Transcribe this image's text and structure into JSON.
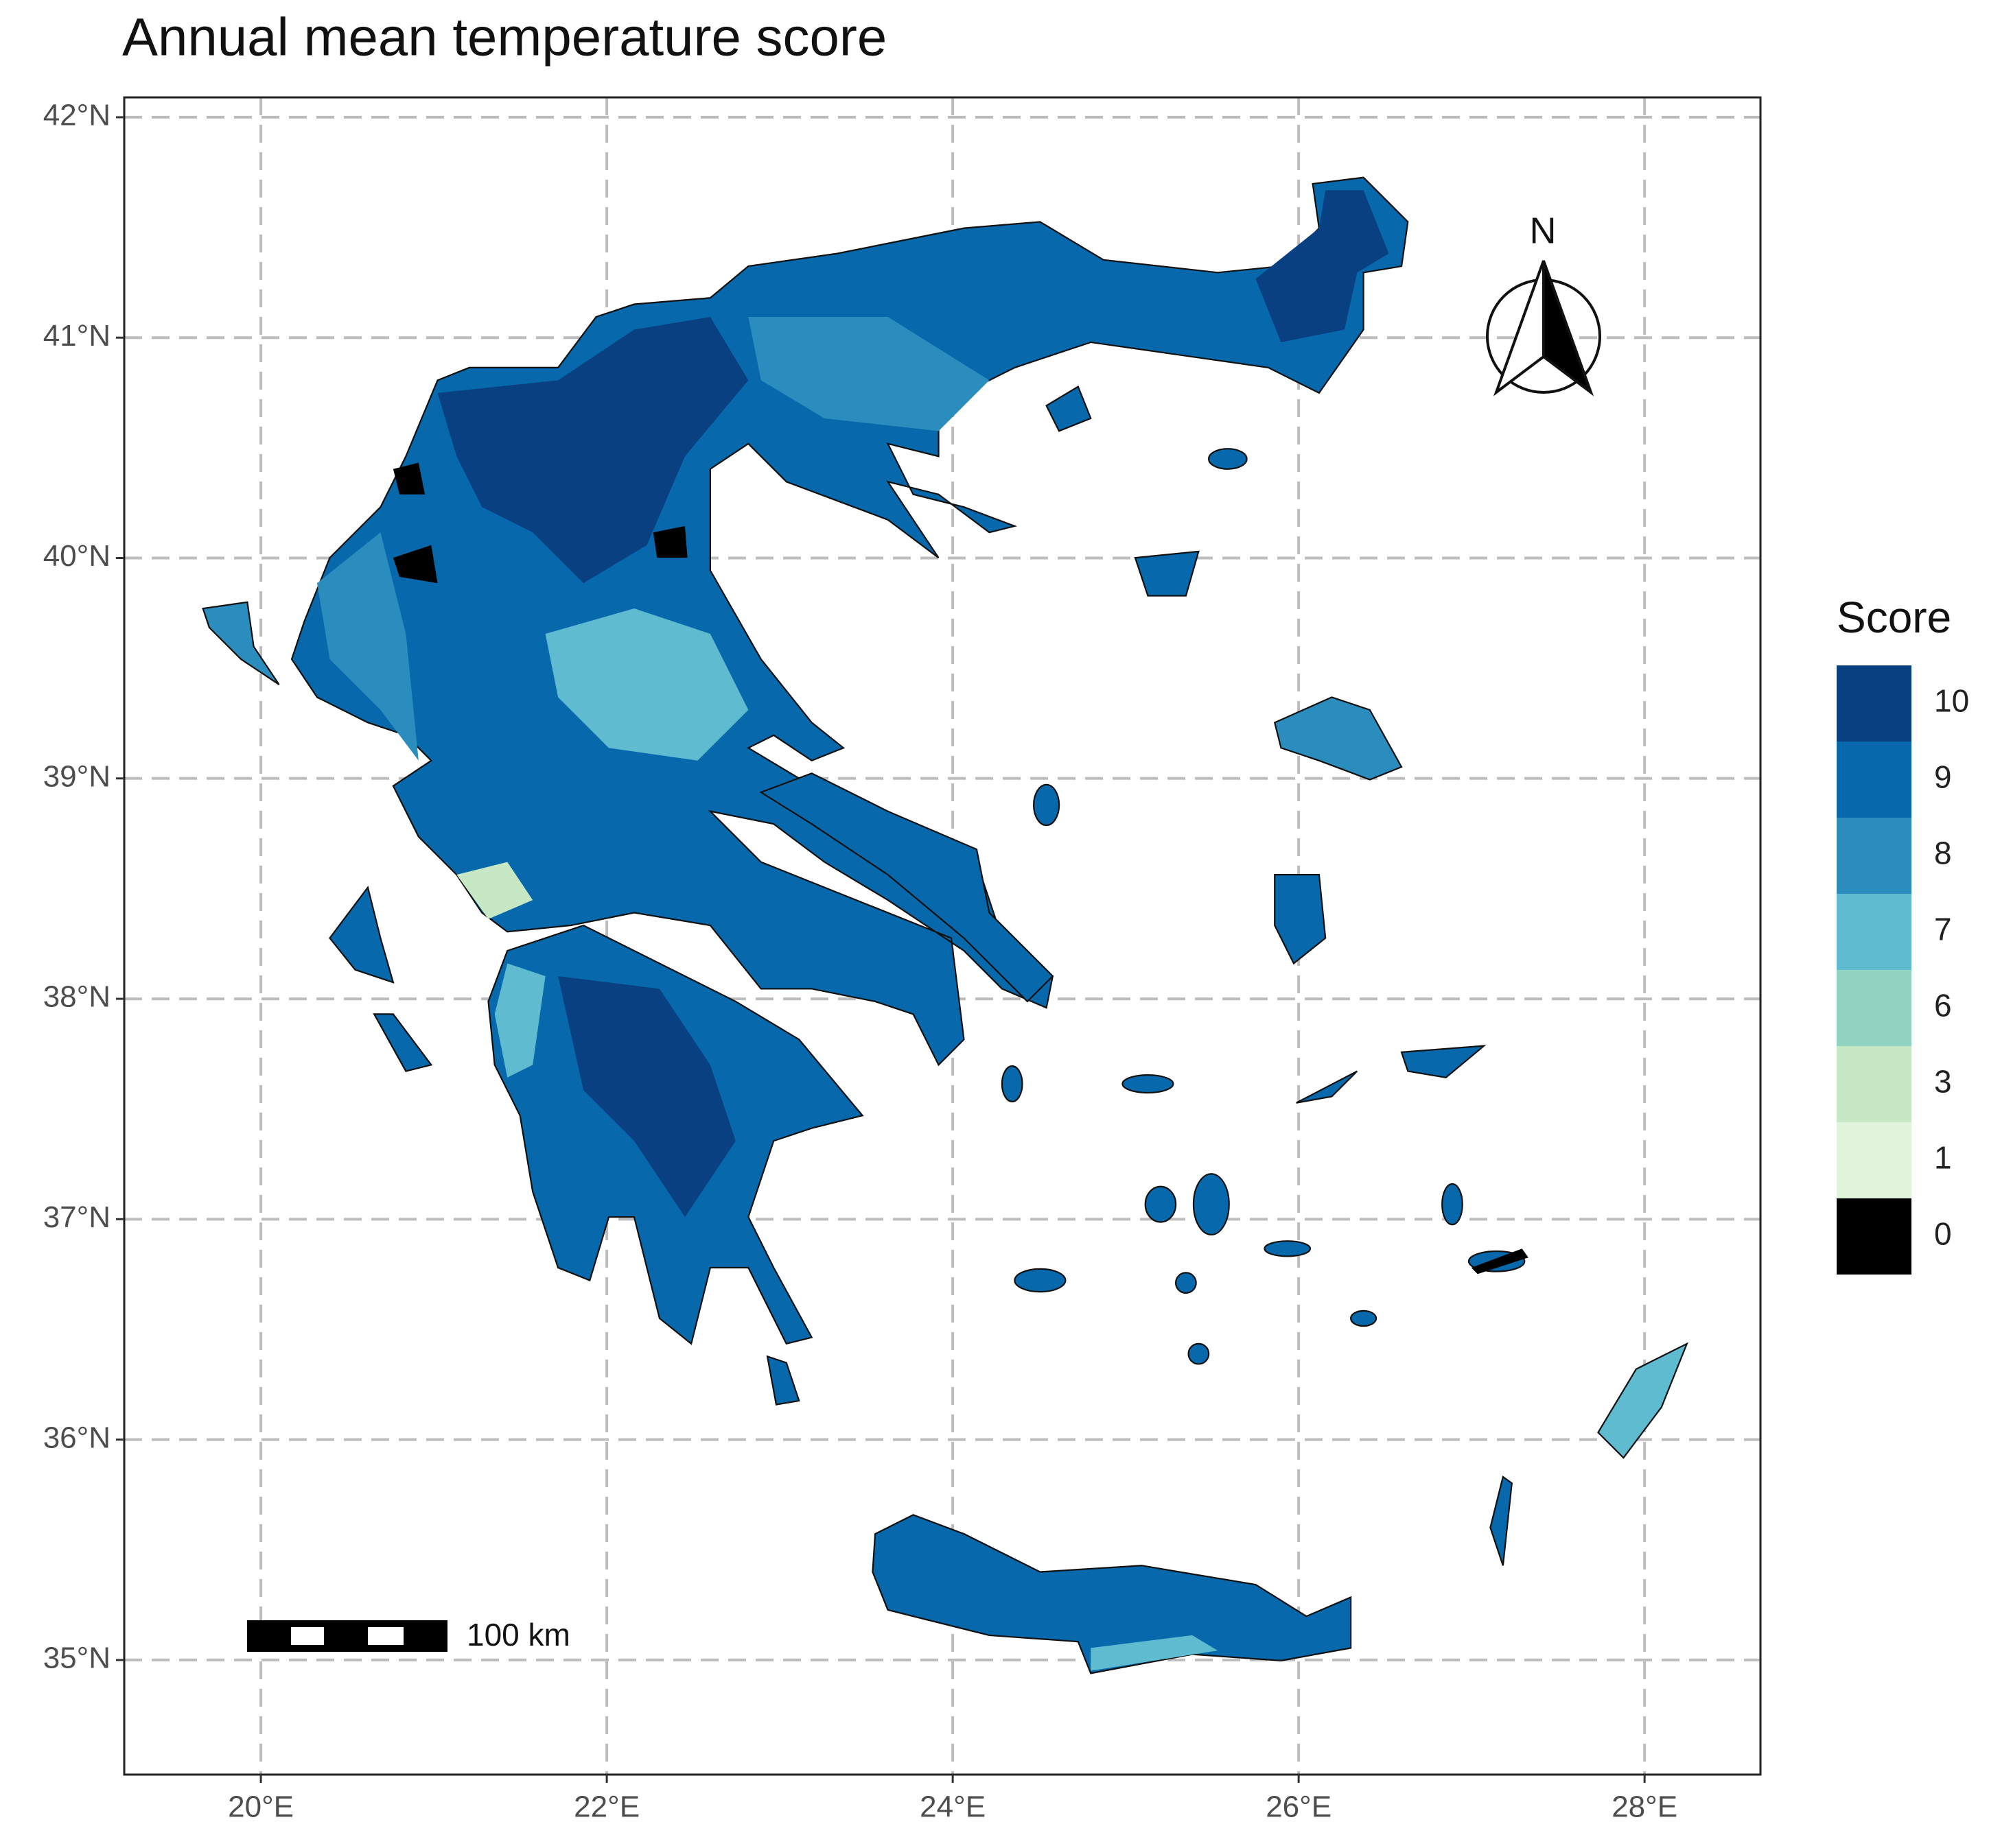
{
  "chart_data": {
    "type": "map",
    "title": "Annual mean temperature score",
    "xlim": [
      19.21,
      28.67
    ],
    "ylim": [
      34.48,
      42.09
    ],
    "xticks": [
      {
        "value": 20,
        "label": "20°E"
      },
      {
        "value": 22,
        "label": "22°E"
      },
      {
        "value": 24,
        "label": "24°E"
      },
      {
        "value": 26,
        "label": "26°E"
      },
      {
        "value": 28,
        "label": "28°E"
      }
    ],
    "yticks": [
      {
        "value": 35,
        "label": "35°N"
      },
      {
        "value": 36,
        "label": "36°N"
      },
      {
        "value": 37,
        "label": "37°N"
      },
      {
        "value": 38,
        "label": "38°N"
      },
      {
        "value": 39,
        "label": "39°N"
      },
      {
        "value": 40,
        "label": "40°N"
      },
      {
        "value": 41,
        "label": "41°N"
      },
      {
        "value": 42,
        "label": "42°N"
      }
    ],
    "grid": true,
    "legend": {
      "title": "Score",
      "values": [
        10,
        9,
        8,
        7,
        6,
        3,
        1,
        0
      ],
      "colors": [
        "#084081",
        "#0868ac",
        "#2b8cbe",
        "#5fbcd0",
        "#8fd3c0",
        "#c6e8c4",
        "#e0f3db",
        "#000000"
      ]
    },
    "scale_bar": "100 km",
    "north_label": "N"
  }
}
